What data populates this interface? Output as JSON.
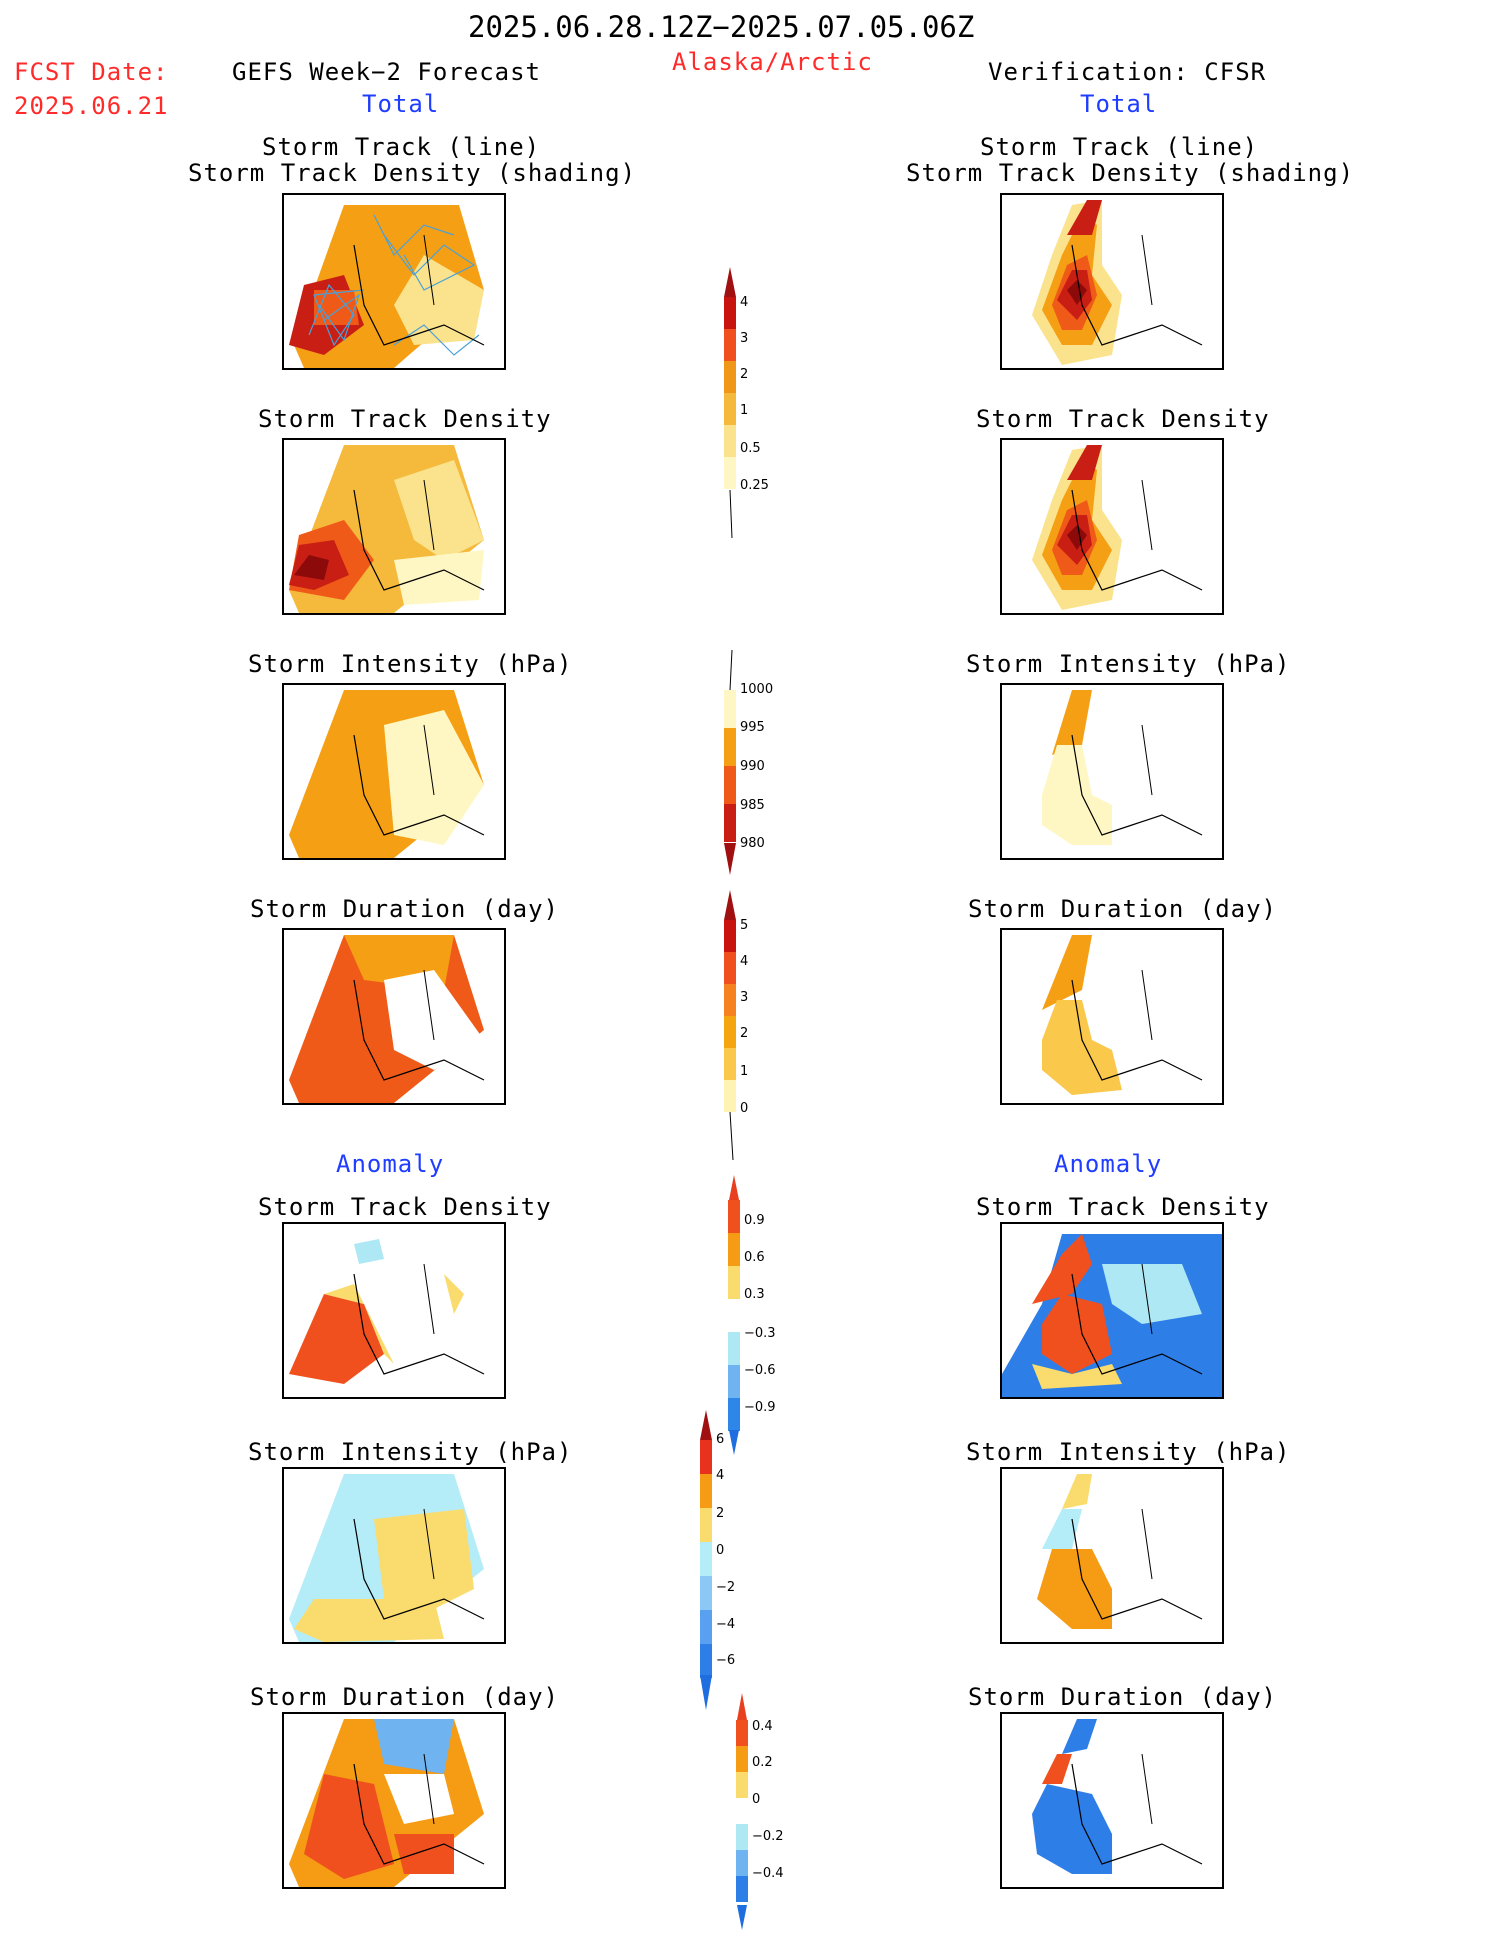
{
  "header": {
    "period": "2025.06.28.12Z−2025.07.05.06Z",
    "region": "Alaska/Arctic",
    "fcst_label": "FCST Date:",
    "fcst_date": "2025.06.21",
    "left_title": "GEFS Week−2 Forecast",
    "right_title": "Verification: CFSR",
    "total_left": "Total",
    "total_right": "Total",
    "anomaly_left": "Anomaly",
    "anomaly_right": "Anomaly"
  },
  "panel_titles": {
    "track_line": "Storm Track (line)",
    "track_shading": "Storm Track Density (shading)",
    "density": "Storm Track Density",
    "intensity": "Storm Intensity (hPa)",
    "duration": "Storm Duration (day)"
  },
  "colorbars": {
    "density": {
      "labels": [
        "4",
        "3",
        "2",
        "1",
        "0.5",
        "0.25"
      ],
      "colors": [
        "#c8140f",
        "#f0501e",
        "#f09619",
        "#f5b93c",
        "#fae38c",
        "#fff7c3"
      ],
      "top_arrow": "#a01010"
    },
    "intensity": {
      "labels": [
        "1000",
        "995",
        "990",
        "985",
        "980"
      ],
      "colors": [
        "#fff7c3",
        "#f5a014",
        "#f05a19",
        "#c81e14"
      ],
      "bottom_arrow": "#a01010"
    },
    "duration": {
      "labels": [
        "5",
        "4",
        "3",
        "2",
        "1",
        "0"
      ],
      "colors": [
        "#c8140f",
        "#f0501e",
        "#f5821e",
        "#f5a50f",
        "#fac84b",
        "#fff3b4"
      ],
      "top_arrow": "#a01010"
    },
    "anom_density": {
      "labels": [
        "0.9",
        "0.6",
        "0.3",
        "−0.3",
        "−0.6",
        "−0.9"
      ],
      "colors": [
        "#f0501e",
        "#f59b14",
        "#fadc6e",
        "#ffffff",
        "#aee8f5",
        "#6fb4f0",
        "#2e86e8"
      ],
      "top_arrow": "#e8401e",
      "bottom_arrow": "#1e6ee0"
    },
    "anom_intensity": {
      "labels": [
        "6",
        "4",
        "2",
        "0",
        "−2",
        "−4",
        "−6"
      ],
      "colors": [
        "#e8321e",
        "#f59b14",
        "#fadc6e",
        "#b4ecf8",
        "#8cc8f5",
        "#5aa0f0",
        "#2e7ee8"
      ],
      "top_arrow": "#a01010",
      "bottom_arrow": "#1e6ee0"
    },
    "anom_duration": {
      "labels": [
        "0.4",
        "0.2",
        "0",
        "−0.2",
        "−0.4"
      ],
      "colors": [
        "#f0501e",
        "#f59b14",
        "#fadc6e",
        "#ffffff",
        "#aee8f5",
        "#6fb4f0",
        "#2e7ee8"
      ],
      "top_arrow": "#e8401e",
      "bottom_arrow": "#1e6ee0"
    }
  }
}
